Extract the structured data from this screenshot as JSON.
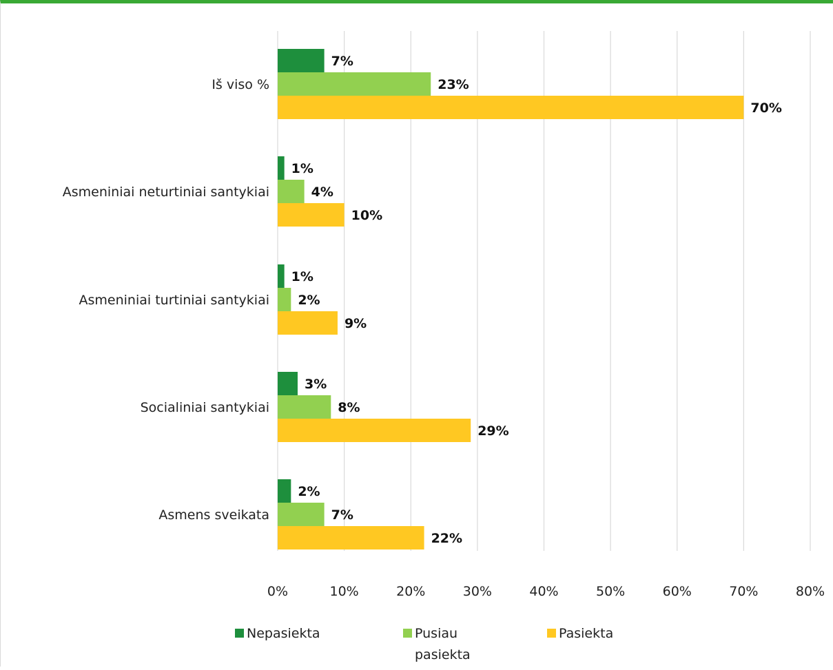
{
  "chart_data": {
    "type": "bar",
    "orientation": "horizontal",
    "categories": [
      "Iš viso %",
      "Asmeniniai neturtiniai santykiai",
      "Asmeniniai turtiniai santykiai",
      "Socialiniai santykiai",
      "Asmens sveikata"
    ],
    "series": [
      {
        "name": "Nepasiekta",
        "color": "#1e8f3d",
        "values": [
          7,
          1,
          1,
          3,
          2
        ]
      },
      {
        "name": "Pusiau pasiekta",
        "color": "#92d050",
        "values": [
          23,
          4,
          2,
          8,
          7
        ]
      },
      {
        "name": "Pasiekta",
        "color": "#ffc822",
        "values": [
          70,
          10,
          9,
          29,
          22
        ]
      }
    ],
    "value_suffix": "%",
    "xlim": [
      0,
      80
    ],
    "xticks": [
      0,
      10,
      20,
      30,
      40,
      50,
      60,
      70,
      80
    ],
    "xtick_labels": [
      "0%",
      "10%",
      "20%",
      "30%",
      "40%",
      "50%",
      "60%",
      "70%",
      "80%"
    ],
    "grid": "vertical",
    "legend": "bottom",
    "legend_labels": [
      "Nepasiekta",
      "Pusiau\npasiekta",
      "Pasiekta"
    ],
    "title": "",
    "xlabel": "",
    "ylabel": ""
  }
}
